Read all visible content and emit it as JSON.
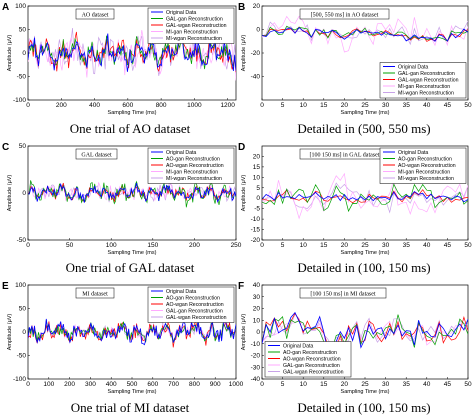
{
  "chart_data": [
    {
      "letter": "A",
      "type": "line",
      "inset_title": "AO dataset",
      "caption": "One trial of AO dataset",
      "xlabel": "Sampling Time (ms)",
      "ylabel": "Amplitude (μV)",
      "xlim": [
        0,
        1250
      ],
      "ylim": [
        -100,
        100
      ],
      "xticks": [
        0,
        200,
        400,
        600,
        800,
        1000,
        1200
      ],
      "yticks": [
        -100,
        -50,
        0,
        50,
        100
      ],
      "legend_position": "top-right",
      "series": [
        {
          "name": "Original Data",
          "color": "#0000ff",
          "amp": 32,
          "freq": 1.0,
          "seed": 11
        },
        {
          "name": "GAL-gan Reconstruction",
          "color": "#00a000",
          "amp": 30,
          "freq": 1.0,
          "seed": 12
        },
        {
          "name": "GAL-wgan Reconstruction",
          "color": "#ff0000",
          "amp": 34,
          "freq": 1.0,
          "seed": 13
        },
        {
          "name": "MI-gan Reconstruction",
          "color": "#ffaaff",
          "amp": 42,
          "freq": 1.2,
          "seed": 14
        },
        {
          "name": "MI-wgan Reconstruction",
          "color": "#c8a2e8",
          "amp": 40,
          "freq": 1.1,
          "seed": 15
        }
      ]
    },
    {
      "letter": "B",
      "type": "line",
      "inset_title": "[500, 550 ms] in AO dataset",
      "caption": "Detailed in (500, 550 ms)",
      "xlabel": "Sampling Time (ms)",
      "ylabel": "Amplitude (μV)",
      "xlim": [
        0,
        50
      ],
      "ylim": [
        -60,
        20
      ],
      "xticks": [
        0,
        5,
        10,
        15,
        20,
        25,
        30,
        35,
        40,
        45,
        50
      ],
      "yticks": [
        -40,
        -20,
        0,
        20
      ],
      "legend_position": "bottom-right",
      "series": [
        {
          "name": "Original Data",
          "color": "#0000ff",
          "amp": 6,
          "freq": 0.25,
          "seed": 21
        },
        {
          "name": "GAL-gan Reconstruction",
          "color": "#00a000",
          "amp": 6,
          "freq": 0.25,
          "seed": 22
        },
        {
          "name": "GAL-wgan Reconstruction",
          "color": "#ff0000",
          "amp": 6,
          "freq": 0.25,
          "seed": 23
        },
        {
          "name": "MI-gan Reconstruction",
          "color": "#ffaaff",
          "amp": 14,
          "freq": 0.35,
          "seed": 24
        },
        {
          "name": "MI-wgan Reconstruction",
          "color": "#c8a2e8",
          "amp": 10,
          "freq": 0.3,
          "seed": 25
        }
      ]
    },
    {
      "letter": "C",
      "type": "line",
      "inset_title": "GAL dataset",
      "caption": "One trial of GAL dataset",
      "xlabel": "Sampling Time (ms)",
      "ylabel": "Amplitude (μV)",
      "xlim": [
        0,
        250
      ],
      "ylim": [
        -50,
        50
      ],
      "xticks": [
        0,
        50,
        100,
        150,
        200,
        250
      ],
      "yticks": [
        -50,
        0,
        50
      ],
      "legend_position": "top-right",
      "series": [
        {
          "name": "Original Data",
          "color": "#0000ff",
          "amp": 8,
          "freq": 1.0,
          "seed": 31
        },
        {
          "name": "AO-gan Reconstruction",
          "color": "#00a000",
          "amp": 12,
          "freq": 1.0,
          "seed": 32
        },
        {
          "name": "AO-wgan Reconstruction",
          "color": "#ff0000",
          "amp": 8,
          "freq": 1.0,
          "seed": 33
        },
        {
          "name": "MI-gan Reconstruction",
          "color": "#ffaaff",
          "amp": 10,
          "freq": 1.5,
          "seed": 34
        },
        {
          "name": "MI-wgan Reconstruction",
          "color": "#c8a2e8",
          "amp": 9,
          "freq": 1.4,
          "seed": 35
        }
      ]
    },
    {
      "letter": "D",
      "type": "line",
      "inset_title": "[100 150 ms] in GAL dataset",
      "caption": "Detailed in (100, 150 ms)",
      "xlabel": "Sampling Time (ms)",
      "ylabel": "Amplitude (μV)",
      "xlim": [
        0,
        50
      ],
      "ylim": [
        -20,
        25
      ],
      "xticks": [
        0,
        5,
        10,
        15,
        20,
        25,
        30,
        35,
        40,
        45,
        50
      ],
      "yticks": [
        -20,
        -15,
        -10,
        -5,
        0,
        5,
        10,
        15,
        20
      ],
      "legend_position": "top-right",
      "series": [
        {
          "name": "Original Data",
          "color": "#0000ff",
          "amp": 3,
          "freq": 0.4,
          "seed": 41
        },
        {
          "name": "AO-gan Reconstruction",
          "color": "#00a000",
          "amp": 8,
          "freq": 0.4,
          "seed": 42
        },
        {
          "name": "AO-wgan Reconstruction",
          "color": "#ff0000",
          "amp": 4,
          "freq": 0.4,
          "seed": 43
        },
        {
          "name": "MI-gan Reconstruction",
          "color": "#ffaaff",
          "amp": 10,
          "freq": 0.8,
          "seed": 44
        },
        {
          "name": "MI-wgan Reconstruction",
          "color": "#c8a2e8",
          "amp": 6,
          "freq": 0.7,
          "seed": 45
        }
      ]
    },
    {
      "letter": "E",
      "type": "line",
      "inset_title": "MI dataset",
      "caption": "One trial of MI dataset",
      "xlabel": "Sampling Time (ms)",
      "ylabel": "Amplitude (μV)",
      "xlim": [
        0,
        1000
      ],
      "ylim": [
        -100,
        100
      ],
      "xticks": [
        0,
        100,
        200,
        300,
        400,
        500,
        600,
        700,
        800,
        900,
        1000
      ],
      "yticks": [
        -100,
        -50,
        0,
        50,
        100
      ],
      "legend_position": "top-right",
      "series": [
        {
          "name": "Original Data",
          "color": "#0000ff",
          "amp": 26,
          "freq": 1.0,
          "seed": 51
        },
        {
          "name": "AO-gan Reconstruction",
          "color": "#00a000",
          "amp": 20,
          "freq": 1.0,
          "seed": 52
        },
        {
          "name": "AO-wgan Reconstruction",
          "color": "#ff0000",
          "amp": 24,
          "freq": 1.0,
          "seed": 53
        },
        {
          "name": "GAL-gan Reconstruction",
          "color": "#ffaaff",
          "amp": 20,
          "freq": 1.0,
          "seed": 54
        },
        {
          "name": "GAL-wgan Reconstruction",
          "color": "#c8a2e8",
          "amp": 20,
          "freq": 1.0,
          "seed": 55
        }
      ]
    },
    {
      "letter": "F",
      "type": "line",
      "inset_title": "[100 150 ms] in MI dataset",
      "caption": "Detailed in (100, 150 ms)",
      "xlabel": "Sampling Time (ms)",
      "ylabel": "Amplitude (μV)",
      "xlim": [
        0,
        50
      ],
      "ylim": [
        -40,
        40
      ],
      "xticks": [
        0,
        5,
        10,
        15,
        20,
        25,
        30,
        35,
        40,
        45,
        50
      ],
      "yticks": [
        -40,
        -30,
        -20,
        -10,
        0,
        10,
        20,
        30,
        40
      ],
      "legend_position": "bottom-left",
      "series": [
        {
          "name": "Original Data",
          "color": "#0000ff",
          "amp": 18,
          "freq": 0.5,
          "seed": 61
        },
        {
          "name": "AO-gan Reconstruction",
          "color": "#00a000",
          "amp": 17,
          "freq": 0.5,
          "seed": 62
        },
        {
          "name": "AO-wgan Reconstruction",
          "color": "#ff0000",
          "amp": 17,
          "freq": 0.5,
          "seed": 63
        },
        {
          "name": "GAL-gan Reconstruction",
          "color": "#ffaaff",
          "amp": 16,
          "freq": 0.5,
          "seed": 64
        },
        {
          "name": "GAL-wgan Reconstruction",
          "color": "#c8a2e8",
          "amp": 16,
          "freq": 0.5,
          "seed": 65
        }
      ]
    }
  ]
}
